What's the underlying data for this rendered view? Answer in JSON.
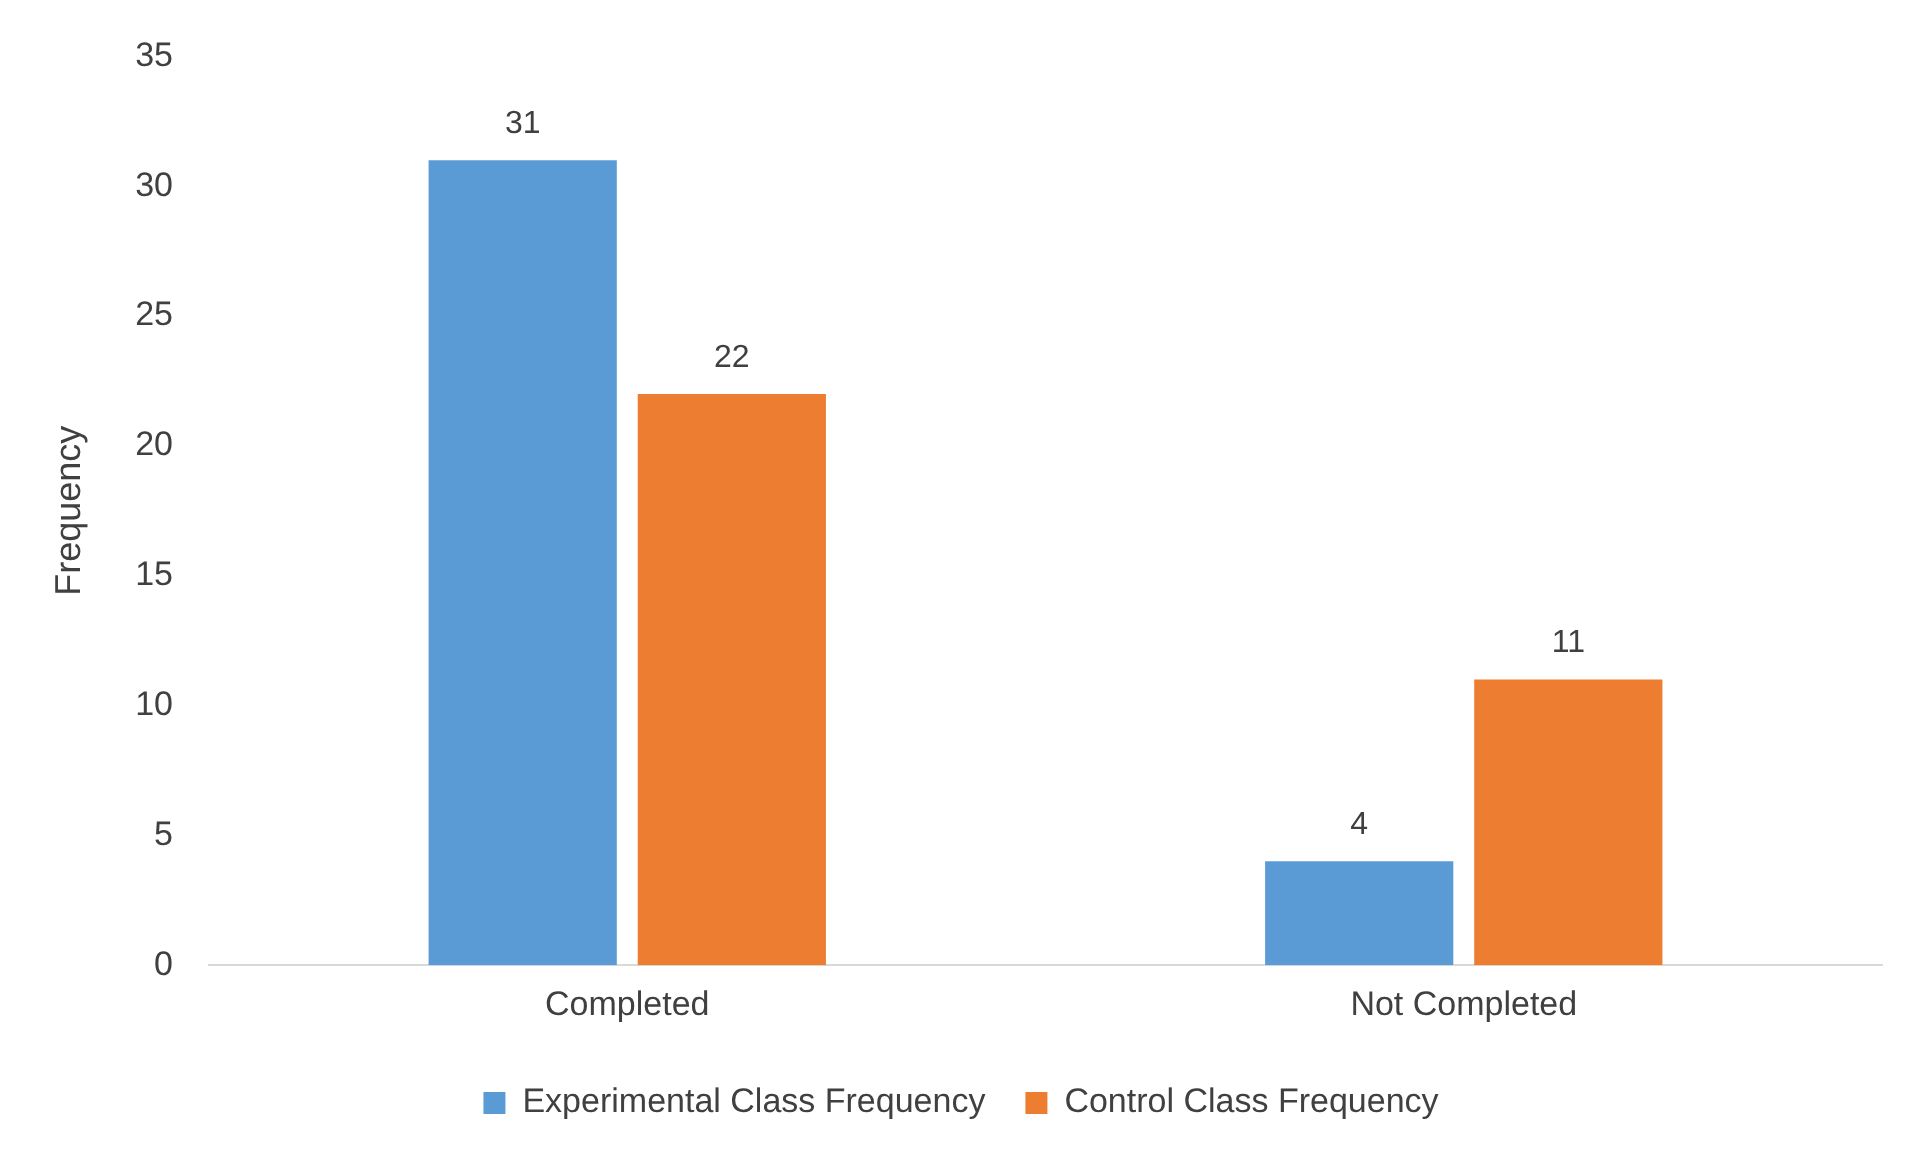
{
  "chart_data": {
    "type": "bar",
    "ylabel": "Frequency",
    "categories": [
      "Completed",
      "Not Completed"
    ],
    "series": [
      {
        "name": "Experimental Class Frequency",
        "color": "#5b9bd5",
        "values": [
          31,
          4
        ]
      },
      {
        "name": "Control Class Frequency",
        "color": "#ed7d31",
        "values": [
          22,
          11
        ]
      }
    ],
    "ylim": [
      0,
      35
    ],
    "yticks": [
      0,
      5,
      10,
      15,
      20,
      25,
      30,
      35
    ],
    "grid": false,
    "legend": "bottom",
    "data_labels": true
  }
}
